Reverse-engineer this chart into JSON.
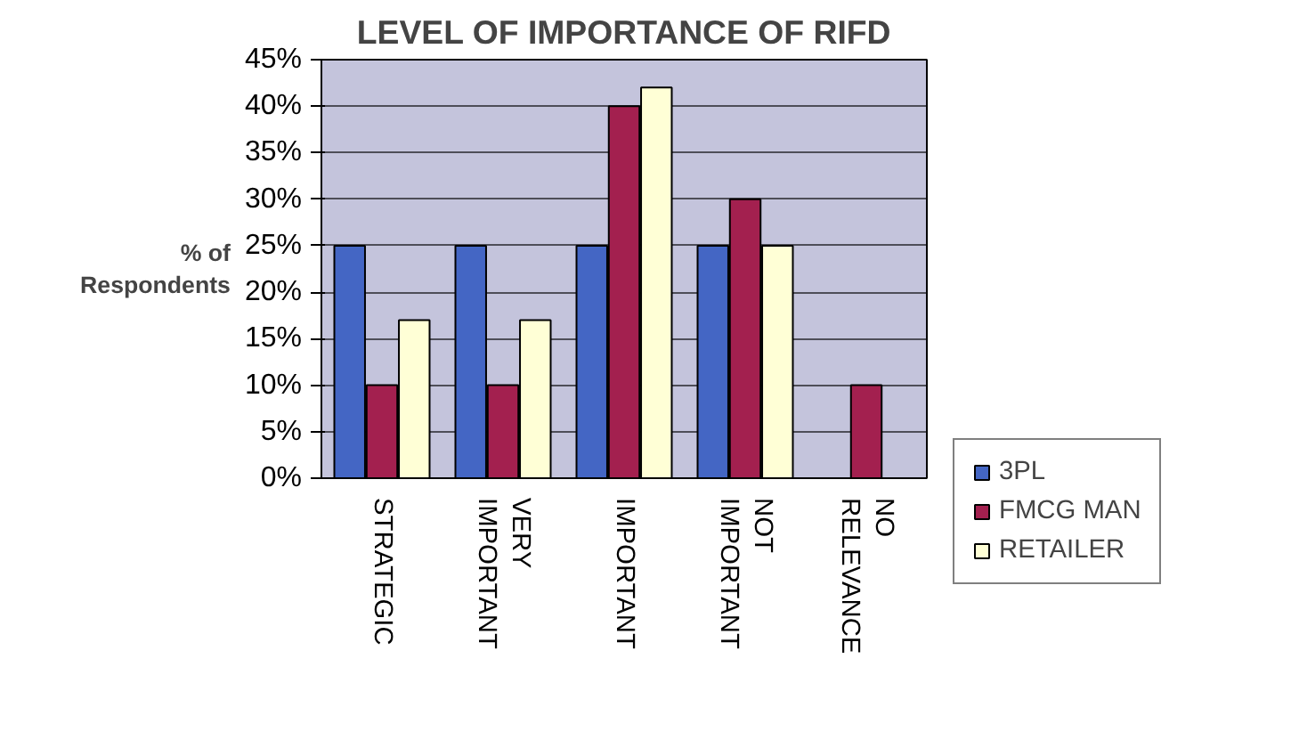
{
  "chart_data": {
    "type": "bar",
    "title": "LEVEL OF IMPORTANCE OF RIFD",
    "ylabel": "% of\nRespondents",
    "categories": [
      "STRATEGIC",
      "VERY\nIMPORTANT",
      "IMPORTANT",
      "NOT\nIMPORTANT",
      "NO\nRELEVANCE"
    ],
    "series": [
      {
        "name": "3PL",
        "color": "#4466c4",
        "values": [
          25,
          25,
          25,
          25,
          null
        ]
      },
      {
        "name": "FMCG MAN",
        "color": "#a3204f",
        "values": [
          10,
          10,
          40,
          30,
          10
        ]
      },
      {
        "name": "RETAILER",
        "color": "#ffffd6",
        "values": [
          17,
          17,
          42,
          25,
          null
        ]
      }
    ],
    "ylim": [
      0,
      45
    ],
    "yticks": [
      {
        "value": 0,
        "label": "0%"
      },
      {
        "value": 5,
        "label": "5%"
      },
      {
        "value": 10,
        "label": "10%"
      },
      {
        "value": 15,
        "label": "15%"
      },
      {
        "value": 20,
        "label": "20%"
      },
      {
        "value": 25,
        "label": "25%"
      },
      {
        "value": 30,
        "label": "30%"
      },
      {
        "value": 35,
        "label": "35%"
      },
      {
        "value": 40,
        "label": "40%"
      },
      {
        "value": 45,
        "label": "45%"
      }
    ],
    "grid": "y",
    "legend": "right"
  }
}
